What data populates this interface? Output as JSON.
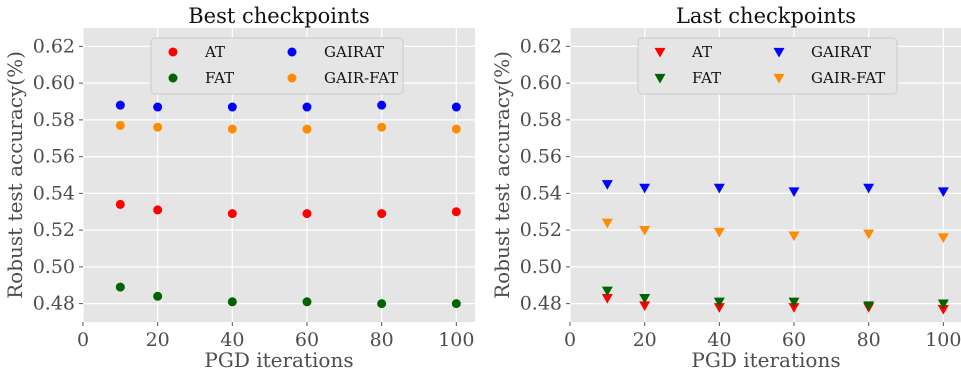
{
  "chart_data": [
    {
      "type": "scatter",
      "title": "Best checkpoints",
      "xlabel": "PGD iterations",
      "ylabel": "Robust test accuracy(%)",
      "xlim": [
        0,
        105
      ],
      "ylim": [
        0.47,
        0.63
      ],
      "xticks": [
        0,
        20,
        40,
        60,
        80,
        100
      ],
      "yticks": [
        0.48,
        0.5,
        0.52,
        0.54,
        0.56,
        0.58,
        0.6,
        0.62
      ],
      "marker": "circle",
      "grid": true,
      "legend_position": "top-center",
      "x": [
        10,
        20,
        40,
        60,
        80,
        100
      ],
      "series": [
        {
          "name": "AT",
          "color": "#ff0000",
          "values": [
            0.534,
            0.531,
            0.529,
            0.529,
            0.529,
            0.53
          ]
        },
        {
          "name": "FAT",
          "color": "#006400",
          "values": [
            0.489,
            0.484,
            0.481,
            0.481,
            0.48,
            0.48
          ]
        },
        {
          "name": "GAIRAT",
          "color": "#0000ff",
          "values": [
            0.588,
            0.587,
            0.587,
            0.587,
            0.588,
            0.587
          ]
        },
        {
          "name": "GAIR-FAT",
          "color": "#ff8c00",
          "values": [
            0.577,
            0.576,
            0.575,
            0.575,
            0.576,
            0.575
          ]
        }
      ]
    },
    {
      "type": "scatter",
      "title": "Last checkpoints",
      "xlabel": "PGD iterations",
      "ylabel": "Robust test accuracy(%)",
      "xlim": [
        0,
        105
      ],
      "ylim": [
        0.47,
        0.63
      ],
      "xticks": [
        0,
        20,
        40,
        60,
        80,
        100
      ],
      "yticks": [
        0.48,
        0.5,
        0.52,
        0.54,
        0.56,
        0.58,
        0.6,
        0.62
      ],
      "marker": "triangle-down",
      "grid": true,
      "legend_position": "top-center",
      "x": [
        10,
        20,
        40,
        60,
        80,
        100
      ],
      "series": [
        {
          "name": "AT",
          "color": "#ff0000",
          "values": [
            0.483,
            0.479,
            0.478,
            0.478,
            0.478,
            0.477
          ]
        },
        {
          "name": "FAT",
          "color": "#006400",
          "values": [
            0.487,
            0.483,
            0.481,
            0.481,
            0.479,
            0.48
          ]
        },
        {
          "name": "GAIRAT",
          "color": "#0000ff",
          "values": [
            0.545,
            0.543,
            0.543,
            0.541,
            0.543,
            0.541
          ]
        },
        {
          "name": "GAIR-FAT",
          "color": "#ff8c00",
          "values": [
            0.524,
            0.52,
            0.519,
            0.517,
            0.518,
            0.516
          ]
        }
      ]
    }
  ]
}
